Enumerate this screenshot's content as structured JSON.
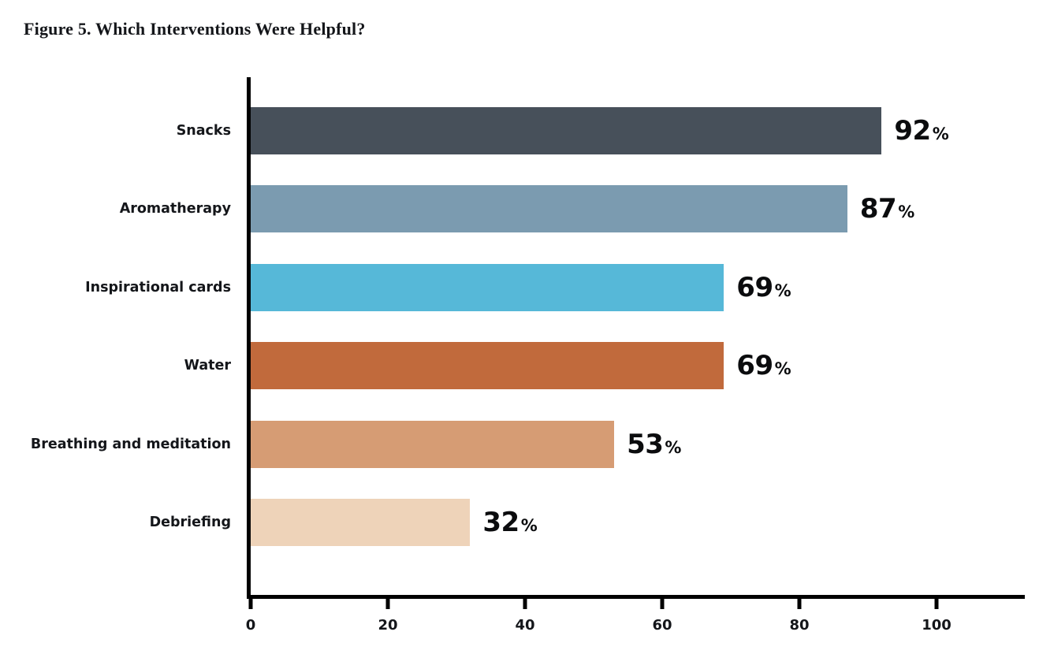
{
  "title": "Figure 5. Which Interventions Were Helpful?",
  "chart_data": {
    "type": "bar",
    "orientation": "horizontal",
    "title": "Figure 5. Which Interventions Were Helpful?",
    "categories": [
      "Snacks",
      "Aromatherapy",
      "Inspirational cards",
      "Water",
      "Breathing and meditation",
      "Debriefing"
    ],
    "values": [
      92,
      87,
      69,
      69,
      53,
      32
    ],
    "value_suffix": "%",
    "bar_colors": [
      "#47505A",
      "#7B9BB0",
      "#56B8D8",
      "#C16A3C",
      "#D69C74",
      "#EED3B9"
    ],
    "x_ticks": [
      0,
      20,
      40,
      60,
      80,
      100
    ],
    "xlim": [
      0,
      113
    ],
    "xlabel": "",
    "ylabel": "",
    "grid": false,
    "legend": false,
    "axis_color": "#000000"
  }
}
